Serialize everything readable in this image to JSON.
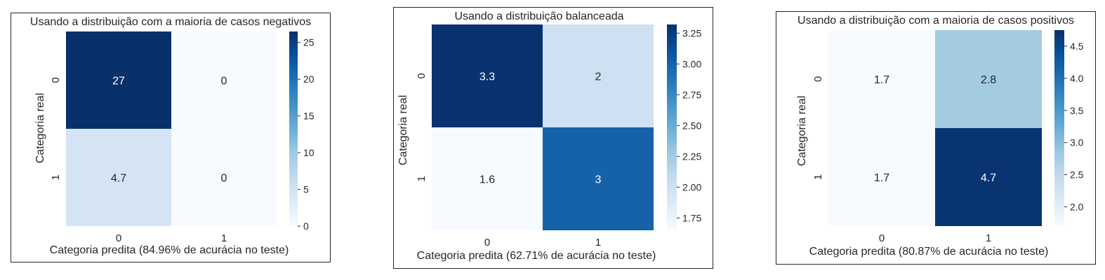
{
  "chart_data": [
    {
      "type": "heatmap",
      "title": "Usando a distribuição com a maioria de casos negativos",
      "xlabel": "Categoria predita (84.96% de acurácia no teste)",
      "ylabel": "Categoria real",
      "x_tick_labels": [
        "0",
        "1"
      ],
      "y_tick_labels": [
        "0",
        "1"
      ],
      "values": [
        [
          27,
          0
        ],
        [
          4.7,
          0
        ]
      ],
      "annotations": [
        [
          "27",
          "0"
        ],
        [
          "4.7",
          "0"
        ]
      ],
      "color_range": [
        0,
        26.5
      ],
      "colorbar_ticks": [
        0,
        5,
        10,
        15,
        20,
        25
      ],
      "colorbar_tick_labels": [
        "0",
        "5",
        "10",
        "15",
        "20",
        "25"
      ],
      "colormap": "Blues"
    },
    {
      "type": "heatmap",
      "title": "Usando a distribuição balanceada",
      "xlabel": "Categoria predita (62.71% de acurácia no teste)",
      "ylabel": "Categoria real",
      "x_tick_labels": [
        "0",
        "1"
      ],
      "y_tick_labels": [
        "0",
        "1"
      ],
      "values": [
        [
          3.3,
          2
        ],
        [
          1.6,
          3
        ]
      ],
      "annotations": [
        [
          "3.3",
          "2"
        ],
        [
          "1.6",
          "3"
        ]
      ],
      "color_range": [
        1.65,
        3.32
      ],
      "colorbar_ticks": [
        1.75,
        2.0,
        2.25,
        2.5,
        2.75,
        3.0,
        3.25
      ],
      "colorbar_tick_labels": [
        "1.75",
        "2.00",
        "2.25",
        "2.50",
        "2.75",
        "3.00",
        "3.25"
      ],
      "colormap": "Blues"
    },
    {
      "type": "heatmap",
      "title": "Usando a distribuição com a maioria de casos positivos",
      "xlabel": "Categoria predita (80.87% de acurácia no teste)",
      "ylabel": "Categoria real",
      "x_tick_labels": [
        "0",
        "1"
      ],
      "y_tick_labels": [
        "0",
        "1"
      ],
      "values": [
        [
          1.7,
          2.8
        ],
        [
          1.7,
          4.7
        ]
      ],
      "annotations": [
        [
          "1.7",
          "2.8"
        ],
        [
          "1.7",
          "4.7"
        ]
      ],
      "color_range": [
        1.7,
        4.75
      ],
      "colorbar_ticks": [
        2.0,
        2.5,
        3.0,
        3.5,
        4.0,
        4.5
      ],
      "colorbar_tick_labels": [
        "2.0",
        "2.5",
        "3.0",
        "3.5",
        "4.0",
        "4.5"
      ],
      "colormap": "Blues"
    }
  ]
}
